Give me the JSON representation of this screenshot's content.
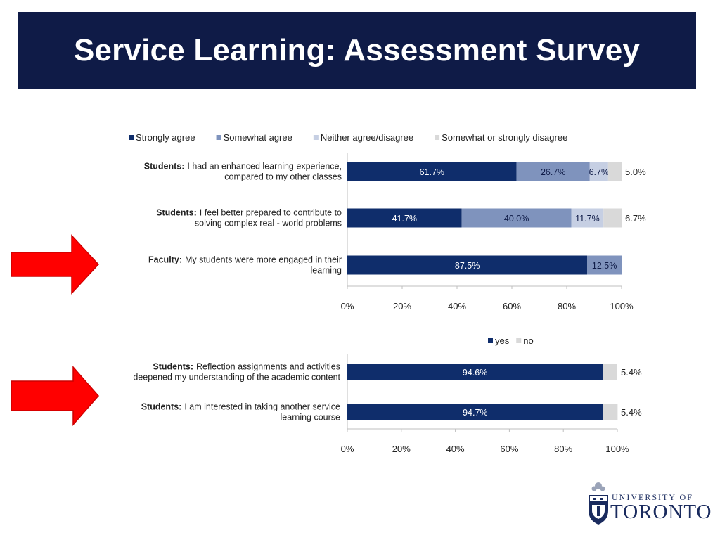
{
  "title": "Service Learning: Assessment Survey",
  "colors": {
    "title_bg": "#0f1b47",
    "strongly_agree": "#0f2d6b",
    "somewhat_agree": "#7f93bd",
    "neither": "#c6cfe3",
    "disagree": "#d9d9d9",
    "yes": "#0f2d6b",
    "no": "#d9d9d9",
    "arrow": "#ff0000"
  },
  "logo": {
    "line1": "UNIVERSITY OF",
    "line2": "TORONTO"
  },
  "chart_data": [
    {
      "type": "bar",
      "orientation": "horizontal",
      "stacked": true,
      "legend_position": "top",
      "categories": [
        {
          "prefix": "Students:",
          "lines": [
            "I had an enhanced learning experience,",
            "compared to my other classes"
          ]
        },
        {
          "prefix": "Students:",
          "lines": [
            "I feel better prepared to contribute to",
            "solving complex real - world problems"
          ]
        },
        {
          "prefix": "Faculty:",
          "lines": [
            "My students were more engaged in their",
            "learning"
          ]
        }
      ],
      "series": [
        {
          "name": "Strongly agree",
          "values": [
            61.7,
            41.7,
            87.5
          ],
          "labels": [
            "61.7%",
            "41.7%",
            "87.5%"
          ]
        },
        {
          "name": "Somewhat agree",
          "values": [
            26.7,
            40.0,
            12.5
          ],
          "labels": [
            "26.7%",
            "40.0%",
            "12.5%"
          ]
        },
        {
          "name": "Neither agree/disagree",
          "values": [
            6.7,
            11.7,
            0
          ],
          "labels": [
            "6.7%",
            "11.7%",
            ""
          ]
        },
        {
          "name": "Somewhat or strongly disagree",
          "values": [
            5.0,
            6.7,
            0
          ],
          "labels": [
            "5.0%",
            "6.7%",
            ""
          ]
        }
      ],
      "xlim": [
        0,
        100
      ],
      "xticks": [
        "0%",
        "20%",
        "40%",
        "60%",
        "80%",
        "100%"
      ]
    },
    {
      "type": "bar",
      "orientation": "horizontal",
      "stacked": true,
      "legend_position": "top-right",
      "categories": [
        {
          "prefix": "Students:",
          "lines": [
            "Reflection assignments and activities",
            "deepened my understanding of the academic content"
          ]
        },
        {
          "prefix": "Students:",
          "lines": [
            "I am interested in taking another service",
            "learning course"
          ]
        }
      ],
      "series": [
        {
          "name": "yes",
          "values": [
            94.6,
            94.7
          ],
          "labels": [
            "94.6%",
            "94.7%"
          ]
        },
        {
          "name": "no",
          "values": [
            5.4,
            5.4
          ],
          "labels": [
            "5.4%",
            "5.4%"
          ]
        }
      ],
      "xlim": [
        0,
        100
      ],
      "xticks": [
        "0%",
        "20%",
        "40%",
        "60%",
        "80%",
        "100%"
      ]
    }
  ]
}
